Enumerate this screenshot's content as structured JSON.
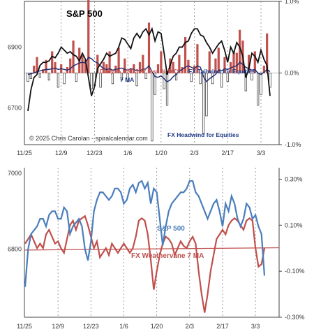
{
  "colors": {
    "spx_black": "#111111",
    "spx_blue": "#4a7ebb",
    "bar_red": "#c0504d",
    "ma_navy": "#1f2a6e",
    "weathervane_red": "#c0504d",
    "annot_red": "#c0504d",
    "annot_navy": "#1f3c88",
    "grid": "#888888"
  },
  "chart_data": [
    {
      "type": "line+bar",
      "title": "S&P 500",
      "x_tick_labels": [
        "11/25",
        "12/9",
        "12/23",
        "1/6",
        "1/20",
        "2/3",
        "2/17",
        "3/3"
      ],
      "left_axis": {
        "ylim": [
          6580,
          7050
        ],
        "tick_labels": [
          "6900",
          "6700"
        ],
        "tick_values": [
          6900,
          6700
        ]
      },
      "right_axis": {
        "ylim": [
          -1.0,
          1.0
        ],
        "tick_labels": [
          "1.0%",
          "0.0%",
          "-1.0%"
        ],
        "tick_values": [
          1.0,
          0.0,
          -1.0
        ]
      },
      "annotations": {
        "series_label_line1": "Daily % USDJPY less % DXY",
        "series_label_line2": "7 MA",
        "tailwind": "FX Tailwind for Equities",
        "headwind": "FX Headwind for Equities",
        "copyright": "© 2025 Chris Carolan - spiralcalendar.com"
      },
      "series": [
        {
          "name": "S&P 500",
          "kind": "line",
          "axis": "left",
          "values": [
            6690,
            6760,
            6800,
            6810,
            6840,
            6850,
            6850,
            6855,
            6870,
            6865,
            6880,
            6900,
            6890,
            6880,
            6885,
            6875,
            6870,
            6855,
            6880,
            6860,
            6800,
            6740,
            6770,
            6830,
            6845,
            6860,
            6880,
            6870,
            6875,
            6880,
            6900,
            6930,
            6925,
            6910,
            6895,
            6930,
            6945,
            6930,
            6950,
            6960,
            6940,
            6960,
            6920,
            6950,
            6945,
            6880,
            6810,
            6840,
            6870,
            6880,
            6900,
            6900,
            6915,
            6920,
            6945,
            6960,
            6960,
            6940,
            6935,
            6915,
            6900,
            6880,
            6895,
            6910,
            6920,
            6890,
            6850,
            6900,
            6880,
            6915,
            6900,
            6870,
            6800,
            6830,
            6880,
            6870,
            6850,
            6890,
            6860,
            6840,
            6740
          ]
        },
        {
          "name": "Daily % USDJPY less % DXY",
          "kind": "bar",
          "axis": "right",
          "values": [
            -0.12,
            -0.08,
            0.1,
            0.22,
            -0.06,
            0.05,
            0.18,
            -0.1,
            0.3,
            0.15,
            -0.2,
            0.12,
            -0.15,
            0.08,
            0.2,
            0.45,
            -0.12,
            0.35,
            0.25,
            0.18,
            1.18,
            -0.22,
            -0.18,
            0.25,
            -0.2,
            0.15,
            0.12,
            0.3,
            -0.15,
            0.1,
            0.35,
            -0.1,
            0.2,
            -0.12,
            0.05,
            0.12,
            -0.18,
            0.15,
            0.25,
            -0.08,
            0.7,
            -0.95,
            -0.3,
            0.12,
            0.3,
            -0.22,
            -0.45,
            0.2,
            0.15,
            -0.1,
            0.25,
            0.08,
            0.5,
            0.18,
            -0.12,
            0.1,
            0.4,
            -0.15,
            -0.85,
            -0.6,
            0.3,
            -0.15,
            0.2,
            0.35,
            -0.2,
            0.22,
            -0.12,
            0.15,
            0.3,
            0.28,
            0.6,
            0.45,
            -0.25,
            0.25,
            -0.1,
            0.3,
            -0.45,
            -0.3,
            0.1,
            0.55,
            -0.2
          ]
        },
        {
          "name": "7 MA",
          "kind": "line",
          "axis": "right",
          "values": [
            -0.02,
            -0.01,
            0.0,
            0.02,
            0.03,
            0.04,
            0.05,
            0.05,
            0.06,
            0.07,
            0.05,
            0.06,
            0.05,
            0.04,
            0.06,
            0.1,
            0.12,
            0.14,
            0.15,
            0.14,
            0.22,
            0.2,
            0.16,
            0.14,
            0.1,
            0.06,
            0.05,
            0.06,
            0.04,
            0.05,
            0.06,
            0.07,
            0.05,
            0.04,
            0.06,
            0.05,
            0.03,
            0.04,
            0.05,
            0.06,
            0.1,
            0.02,
            -0.05,
            -0.06,
            -0.04,
            -0.08,
            -0.12,
            -0.1,
            -0.05,
            -0.02,
            0.03,
            0.05,
            0.08,
            0.1,
            0.08,
            0.06,
            0.1,
            0.08,
            -0.05,
            -0.12,
            -0.08,
            -0.05,
            -0.02,
            0.04,
            0.03,
            0.06,
            0.05,
            0.07,
            0.09,
            0.1,
            0.15,
            0.12,
            0.08,
            0.06,
            0.04,
            0.05,
            0.0,
            -0.02,
            0.01,
            0.05,
            0.02
          ]
        }
      ]
    },
    {
      "type": "line",
      "x_tick_labels": [
        "11/25",
        "12/9",
        "12/23",
        "1/6",
        "1/20",
        "2/3",
        "2/17",
        "3/3"
      ],
      "left_axis": {
        "ylim": [
          6620,
          7015
        ],
        "tick_labels": [
          "7000",
          "6800"
        ],
        "tick_values": [
          7000,
          6800
        ]
      },
      "right_axis": {
        "ylim": [
          -0.3,
          0.35
        ],
        "tick_labels": [
          "0.30%",
          "0.10%",
          "-0.10%",
          "-0.30%"
        ],
        "tick_values": [
          0.3,
          0.1,
          -0.1,
          -0.3
        ]
      },
      "annotations": {
        "spx_label": "S&P 500",
        "weathervane_label": "FX Weathervane 7 MA"
      },
      "series": [
        {
          "name": "S&P 500",
          "axis": "left",
          "values": [
            6700,
            6800,
            6840,
            6850,
            6860,
            6880,
            6880,
            6860,
            6890,
            6900,
            6900,
            6880,
            6880,
            6910,
            6900,
            6840,
            6860,
            6870,
            6880,
            6860,
            6800,
            6770,
            6820,
            6900,
            6930,
            6950,
            6950,
            6940,
            6930,
            6940,
            6960,
            6960,
            6950,
            6920,
            6930,
            6960,
            6970,
            6950,
            6975,
            6980,
            6960,
            6975,
            6920,
            6960,
            6950,
            6880,
            6810,
            6860,
            6900,
            6920,
            6930,
            6940,
            6950,
            6950,
            6960,
            6980,
            6980,
            6950,
            6940,
            6920,
            6900,
            6880,
            6900,
            6920,
            6930,
            6900,
            6860,
            6920,
            6900,
            6940,
            6920,
            6880,
            6860,
            6880,
            6920,
            6910,
            6880,
            6890,
            6860,
            6840,
            6730
          ]
        },
        {
          "name": "FX Weathervane 7 MA",
          "axis": "right",
          "values": [
            0.02,
            0.04,
            0.06,
            0.03,
            0.0,
            0.02,
            0.0,
            0.06,
            0.08,
            0.05,
            0.02,
            0.03,
            0.0,
            -0.02,
            0.04,
            0.1,
            0.12,
            0.08,
            0.12,
            0.13,
            0.14,
            0.1,
            0.05,
            0.0,
            0.03,
            -0.04,
            -0.02,
            0.0,
            -0.03,
            0.02,
            0.0,
            -0.02,
            0.0,
            0.02,
            0.0,
            -0.02,
            0.0,
            0.05,
            0.12,
            0.13,
            0.12,
            0.06,
            -0.05,
            -0.18,
            -0.1,
            -0.03,
            0.02,
            0.05,
            0.04,
            0.02,
            -0.03,
            0.0,
            0.03,
            0.01,
            0.0,
            0.03,
            0.05,
            0.02,
            -0.1,
            -0.2,
            -0.28,
            -0.2,
            -0.1,
            -0.03,
            0.04,
            0.06,
            0.08,
            0.06,
            0.1,
            0.12,
            0.13,
            0.12,
            0.1,
            0.08,
            0.12,
            0.13,
            0.12,
            0.0,
            -0.08,
            -0.07,
            0.0
          ]
        },
        {
          "name": "trend",
          "axis": "right",
          "values_start_end": [
            -0.008,
            0.002
          ]
        }
      ]
    }
  ]
}
